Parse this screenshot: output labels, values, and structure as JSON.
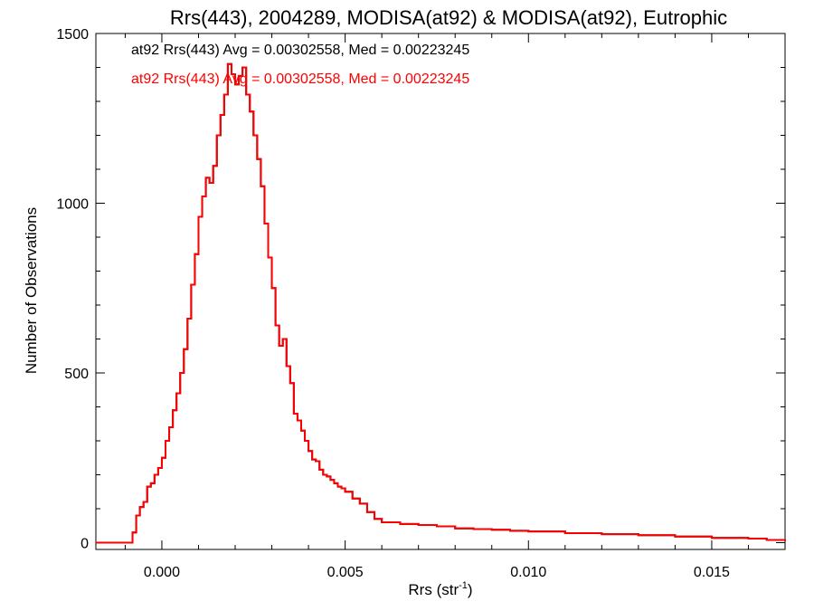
{
  "chart_data": {
    "type": "line",
    "title": "Rrs(443), 2004289, MODISA(at92) & MODISA(at92), Eutrophic",
    "xlabel": "Rrs (str",
    "xlabel_superscript": "-1",
    "xlabel_suffix": ")",
    "ylabel": "Number of Observations",
    "xlim": [
      -0.0018,
      0.017
    ],
    "ylim": [
      -20,
      1500
    ],
    "x_ticks": [
      0.0,
      0.005,
      0.01,
      0.015
    ],
    "x_tick_labels": [
      "0.000",
      "0.005",
      "0.010",
      "0.015"
    ],
    "y_ticks": [
      0,
      500,
      1000,
      1500
    ],
    "y_tick_labels": [
      "0",
      "500",
      "1000",
      "1500"
    ],
    "grid": false,
    "legend_position": "top-left",
    "annotations": [
      {
        "text": "at92 Rrs(443) Avg = 0.00302558, Med = 0.00223245",
        "color": "#000000"
      },
      {
        "text": "at92 Rrs(443) Avg = 0.00302558, Med = 0.00223245",
        "color": "#ff0000"
      }
    ],
    "series": [
      {
        "color": "#000000",
        "x": [
          -0.0018,
          -0.0009,
          -0.0008,
          -0.0007,
          -0.0006,
          -0.0005,
          -0.0004,
          -0.0003,
          -0.0002,
          -0.0001,
          0.0,
          0.0001,
          0.0002,
          0.0003,
          0.0004,
          0.0005,
          0.0006,
          0.0007,
          0.0008,
          0.0009,
          0.001,
          0.0011,
          0.0012,
          0.0013,
          0.0014,
          0.0015,
          0.0016,
          0.0017,
          0.0018,
          0.0019,
          0.002,
          0.0021,
          0.0022,
          0.0023,
          0.0024,
          0.0025,
          0.0026,
          0.0027,
          0.0028,
          0.0029,
          0.003,
          0.0031,
          0.0032,
          0.0033,
          0.0034,
          0.0035,
          0.0036,
          0.0037,
          0.0038,
          0.0039,
          0.004,
          0.0041,
          0.0042,
          0.0043,
          0.0044,
          0.0045,
          0.0046,
          0.0047,
          0.0048,
          0.0049,
          0.005,
          0.0052,
          0.0054,
          0.0056,
          0.0058,
          0.006,
          0.0065,
          0.007,
          0.0075,
          0.008,
          0.0085,
          0.009,
          0.0095,
          0.01,
          0.011,
          0.012,
          0.013,
          0.014,
          0.015,
          0.016,
          0.0165,
          0.017
        ],
        "values": [
          0,
          0,
          30,
          80,
          105,
          120,
          165,
          175,
          200,
          220,
          250,
          300,
          340,
          390,
          440,
          500,
          570,
          660,
          760,
          850,
          960,
          1020,
          1075,
          1060,
          1110,
          1200,
          1260,
          1320,
          1410,
          1380,
          1350,
          1375,
          1400,
          1320,
          1270,
          1200,
          1130,
          1050,
          940,
          840,
          750,
          640,
          580,
          600,
          520,
          470,
          380,
          360,
          330,
          300,
          270,
          245,
          240,
          215,
          200,
          195,
          185,
          175,
          165,
          160,
          150,
          130,
          115,
          90,
          70,
          60,
          55,
          52,
          48,
          42,
          40,
          38,
          35,
          33,
          28,
          25,
          22,
          18,
          14,
          12,
          8,
          5
        ]
      },
      {
        "color": "#ff0000",
        "x": [
          -0.0018,
          -0.0009,
          -0.0008,
          -0.0007,
          -0.0006,
          -0.0005,
          -0.0004,
          -0.0003,
          -0.0002,
          -0.0001,
          0.0,
          0.0001,
          0.0002,
          0.0003,
          0.0004,
          0.0005,
          0.0006,
          0.0007,
          0.0008,
          0.0009,
          0.001,
          0.0011,
          0.0012,
          0.0013,
          0.0014,
          0.0015,
          0.0016,
          0.0017,
          0.0018,
          0.0019,
          0.002,
          0.0021,
          0.0022,
          0.0023,
          0.0024,
          0.0025,
          0.0026,
          0.0027,
          0.0028,
          0.0029,
          0.003,
          0.0031,
          0.0032,
          0.0033,
          0.0034,
          0.0035,
          0.0036,
          0.0037,
          0.0038,
          0.0039,
          0.004,
          0.0041,
          0.0042,
          0.0043,
          0.0044,
          0.0045,
          0.0046,
          0.0047,
          0.0048,
          0.0049,
          0.005,
          0.0052,
          0.0054,
          0.0056,
          0.0058,
          0.006,
          0.0065,
          0.007,
          0.0075,
          0.008,
          0.0085,
          0.009,
          0.0095,
          0.01,
          0.011,
          0.012,
          0.013,
          0.014,
          0.015,
          0.016,
          0.0165,
          0.017
        ],
        "values": [
          0,
          0,
          30,
          80,
          105,
          120,
          165,
          175,
          200,
          220,
          250,
          300,
          340,
          390,
          440,
          500,
          570,
          660,
          760,
          850,
          960,
          1020,
          1075,
          1060,
          1110,
          1200,
          1260,
          1320,
          1410,
          1380,
          1350,
          1375,
          1400,
          1320,
          1270,
          1200,
          1130,
          1050,
          940,
          840,
          750,
          640,
          580,
          600,
          520,
          470,
          380,
          360,
          330,
          300,
          270,
          245,
          240,
          215,
          200,
          195,
          185,
          175,
          165,
          160,
          150,
          130,
          115,
          90,
          70,
          60,
          55,
          52,
          48,
          42,
          40,
          38,
          35,
          33,
          28,
          25,
          22,
          18,
          14,
          12,
          8,
          5
        ]
      }
    ]
  }
}
